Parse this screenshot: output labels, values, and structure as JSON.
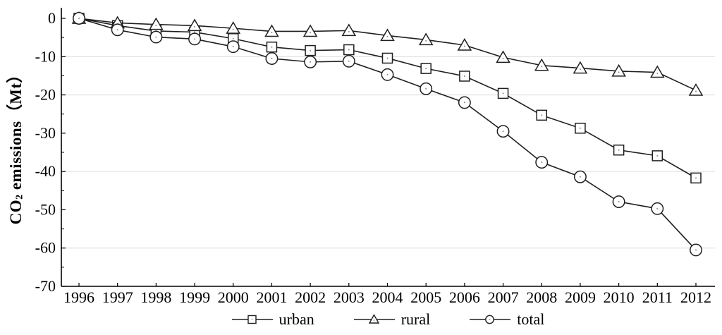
{
  "figure": {
    "background": "#ffffff",
    "axis_color": "#000000",
    "series_line_color": "#1f1f1f",
    "gridline_color": "#dcdcdc",
    "marker_fill": "#ffffff",
    "marker_dot_color": "#8a8a8a"
  },
  "y_axis": {
    "label_prefix": "CO",
    "label_sub": "2",
    "label_suffix": " emissions（Mt）",
    "ticks": [
      0,
      -10,
      -20,
      -30,
      -40,
      -50,
      -60,
      -70
    ],
    "minor_ticks": [
      -5,
      -15,
      -25,
      -35,
      -45,
      -55,
      -65
    ],
    "gridlines": [
      -10,
      -20,
      -40,
      -60
    ]
  },
  "chart_data": {
    "type": "line",
    "title": "",
    "xlabel": "",
    "ylabel": "CO2 emissions (Mt)",
    "ylim": [
      -70,
      0
    ],
    "grid": "horizontal, light gray at -10/-20/-40/-60",
    "legend_position": "bottom-center",
    "x": [
      "1996",
      "1997",
      "1998",
      "1999",
      "2000",
      "2001",
      "2002",
      "2003",
      "2004",
      "2005",
      "2006",
      "2007",
      "2008",
      "2009",
      "2010",
      "2011",
      "2012"
    ],
    "series": [
      {
        "name": "urban",
        "marker": "square",
        "values": [
          0,
          -1.9,
          -3.3,
          -3.6,
          -5.3,
          -7.5,
          -8.4,
          -8.2,
          -10.4,
          -13.1,
          -15.1,
          -19.6,
          -25.3,
          -28.7,
          -34.4,
          -35.9,
          -41.7
        ]
      },
      {
        "name": "rural",
        "marker": "triangle",
        "values": [
          0,
          -1.2,
          -1.6,
          -1.9,
          -2.6,
          -3.4,
          -3.4,
          -3.2,
          -4.5,
          -5.6,
          -7.0,
          -10.2,
          -12.3,
          -13.0,
          -13.8,
          -14.1,
          -18.8
        ]
      },
      {
        "name": "total",
        "marker": "circle",
        "values": [
          0,
          -3.0,
          -4.9,
          -5.4,
          -7.4,
          -10.5,
          -11.4,
          -11.2,
          -14.7,
          -18.4,
          -22.0,
          -29.5,
          -37.6,
          -41.4,
          -47.9,
          -49.7,
          -60.5
        ]
      }
    ]
  }
}
